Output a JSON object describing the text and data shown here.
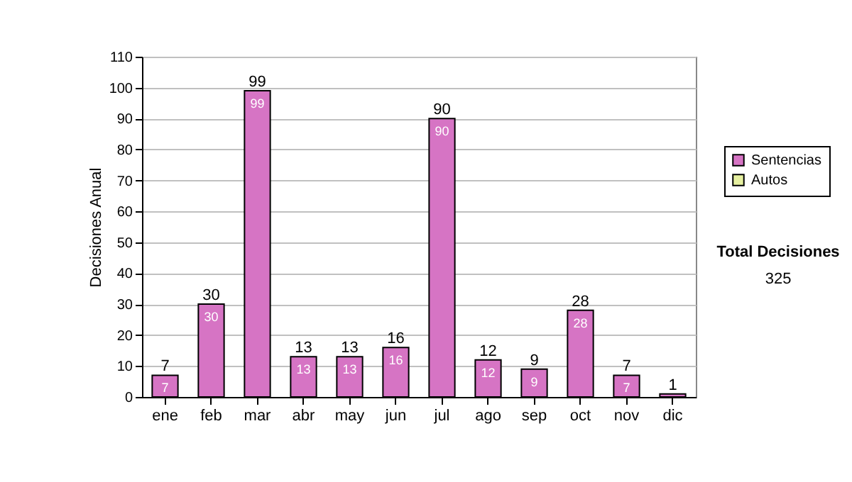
{
  "chart_data": {
    "type": "bar",
    "stacked": true,
    "categories": [
      "ene",
      "feb",
      "mar",
      "abr",
      "may",
      "jun",
      "jul",
      "ago",
      "sep",
      "oct",
      "nov",
      "dic"
    ],
    "series": [
      {
        "name": "Sentencias",
        "color": "#d674c4",
        "values": [
          7,
          30,
          99,
          13,
          13,
          16,
          90,
          12,
          9,
          28,
          7,
          1
        ],
        "value_labels": [
          "7",
          "30",
          "99",
          "13",
          "13",
          "16",
          "90",
          "12",
          "9",
          "28",
          "7",
          null
        ]
      },
      {
        "name": "Autos",
        "color": "#e6f0a0",
        "values": [
          null,
          null,
          null,
          null,
          null,
          null,
          null,
          null,
          null,
          null,
          null,
          null
        ]
      }
    ],
    "totals": [
      "7",
      "30",
      "99",
      "13",
      "13",
      "16",
      "90",
      "12",
      "9",
      "28",
      "7",
      "1"
    ],
    "ylabel": "Decisiones Anual",
    "ylim": [
      0,
      110
    ],
    "yticks": [
      0,
      10,
      20,
      30,
      40,
      50,
      60,
      70,
      80,
      90,
      100,
      110
    ],
    "grid": "y",
    "legend": "right",
    "annotations": [
      "Total Decisiones",
      "325"
    ]
  }
}
